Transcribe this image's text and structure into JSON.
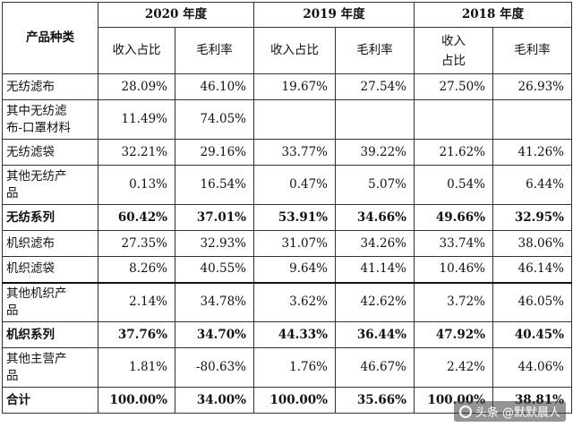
{
  "header": {
    "category": "产品种类",
    "years": [
      "2020 年度",
      "2019 年度",
      "2018 年度"
    ],
    "revenue_share": [
      "收入占比",
      "收入占比",
      "收入\n占比"
    ],
    "gross_margin": [
      "毛利率",
      "毛利率",
      "毛利率"
    ]
  },
  "rows": [
    {
      "name": "无纺滤布",
      "values": [
        "28.09%",
        "46.10%",
        "19.67%",
        "27.54%",
        "27.50%",
        "26.93%"
      ]
    },
    {
      "name": "其中无纺滤\n布-口罩材料",
      "values": [
        "11.49%",
        "74.05%",
        "",
        "",
        "",
        ""
      ]
    },
    {
      "name": "无纺滤袋",
      "values": [
        "32.21%",
        "29.16%",
        "33.77%",
        "39.22%",
        "21.62%",
        "41.26%"
      ]
    },
    {
      "name": "其他无纺产\n品",
      "values": [
        "0.13%",
        "16.54%",
        "0.47%",
        "5.07%",
        "0.54%",
        "6.44%"
      ]
    },
    {
      "name": "无纺系列",
      "values": [
        "60.42%",
        "37.01%",
        "53.91%",
        "34.66%",
        "49.66%",
        "32.95%"
      ]
    },
    {
      "name": "机织滤布",
      "values": [
        "27.35%",
        "32.93%",
        "31.07%",
        "34.26%",
        "33.74%",
        "38.06%"
      ]
    },
    {
      "name": "机织滤袋",
      "values": [
        "8.26%",
        "40.55%",
        "9.64%",
        "41.14%",
        "10.46%",
        "46.14%"
      ]
    },
    {
      "name": "其他机织产\n品",
      "values": [
        "2.14%",
        "34.78%",
        "3.62%",
        "42.62%",
        "3.72%",
        "46.05%"
      ]
    },
    {
      "name": "机织系列",
      "values": [
        "37.76%",
        "34.70%",
        "44.33%",
        "36.44%",
        "47.92%",
        "40.45%"
      ]
    },
    {
      "name": "其他主营产\n品",
      "values": [
        "1.81%",
        "-80.63%",
        "1.76%",
        "46.67%",
        "2.42%",
        "44.06%"
      ]
    },
    {
      "name": "合计",
      "values": [
        "100.00%",
        "34.00%",
        "100.00%",
        "35.66%",
        "100.00%",
        "38.81%"
      ]
    }
  ],
  "watermark": "头条 @默默晨人"
}
